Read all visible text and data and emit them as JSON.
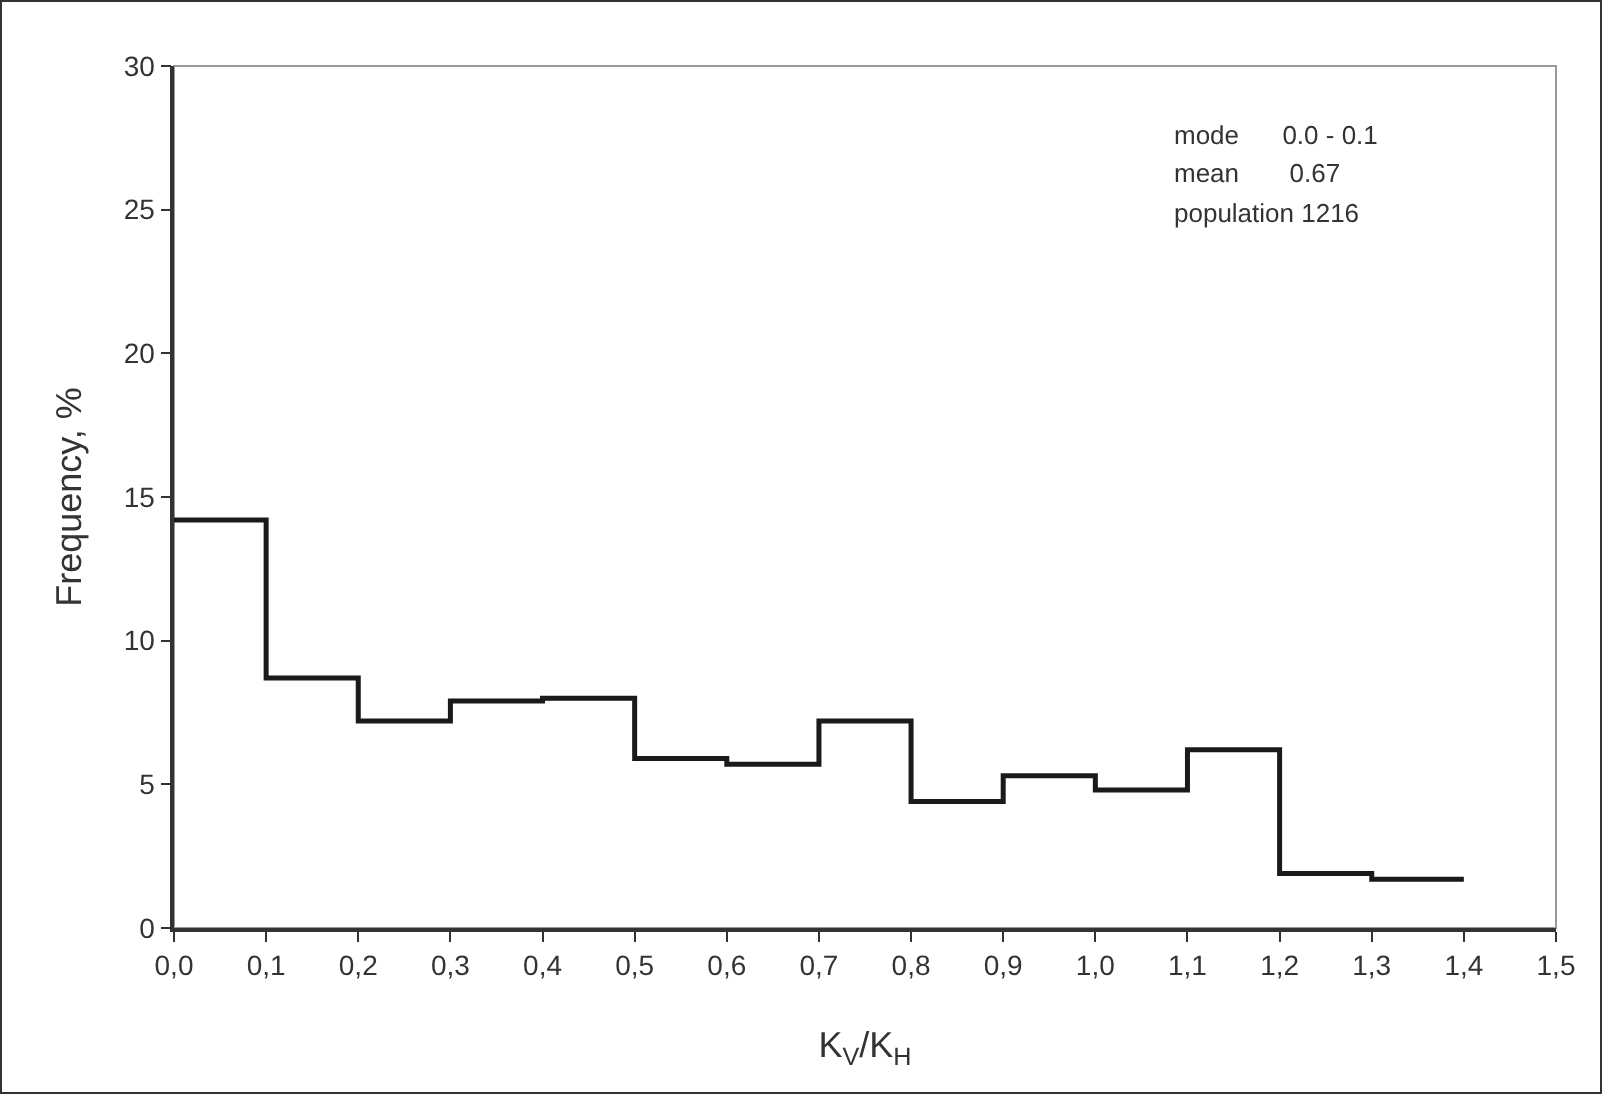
{
  "chart_data": {
    "type": "histogram",
    "xlabel": "K$_{V}$/K$_{H}$",
    "ylabel": "Frequency, %",
    "bins": [
      0,
      0.1,
      0.2,
      0.3,
      0.4,
      0.5,
      0.6,
      0.7,
      0.8,
      0.9,
      1.0,
      1.1,
      1.2,
      1.3,
      1.4
    ],
    "values": [
      14.2,
      8.7,
      7.2,
      7.9,
      8.0,
      5.9,
      5.7,
      7.2,
      4.4,
      5.3,
      4.8,
      6.2,
      1.9,
      1.7
    ],
    "color": "#1a1a1a",
    "xlim": [
      0,
      1.5
    ],
    "xticks": [
      {
        "value": 0,
        "label": "0,0"
      },
      {
        "value": 0.1,
        "label": "0,1"
      },
      {
        "value": 0.2,
        "label": "0,2"
      },
      {
        "value": 0.3,
        "label": "0,3"
      },
      {
        "value": 0.4,
        "label": "0,4"
      },
      {
        "value": 0.5,
        "label": "0,5"
      },
      {
        "value": 0.6,
        "label": "0,6"
      },
      {
        "value": 0.7,
        "label": "0,7"
      },
      {
        "value": 0.8,
        "label": "0,8"
      },
      {
        "value": 0.9,
        "label": "0,9"
      },
      {
        "value": 1.0,
        "label": "1,0"
      },
      {
        "value": 1.1,
        "label": "1,1"
      },
      {
        "value": 1.2,
        "label": "1,2"
      },
      {
        "value": 1.3,
        "label": "1,3"
      },
      {
        "value": 1.4,
        "label": "1,4"
      },
      {
        "value": 1.5,
        "label": "1,5"
      }
    ],
    "ylim": [
      0,
      30
    ],
    "yticks": [
      0,
      5,
      10,
      15,
      20,
      25,
      30
    ],
    "annotations": [
      "mode      0.0 - 0.1",
      "mean       0.67",
      "population 1216"
    ],
    "grid": false
  }
}
